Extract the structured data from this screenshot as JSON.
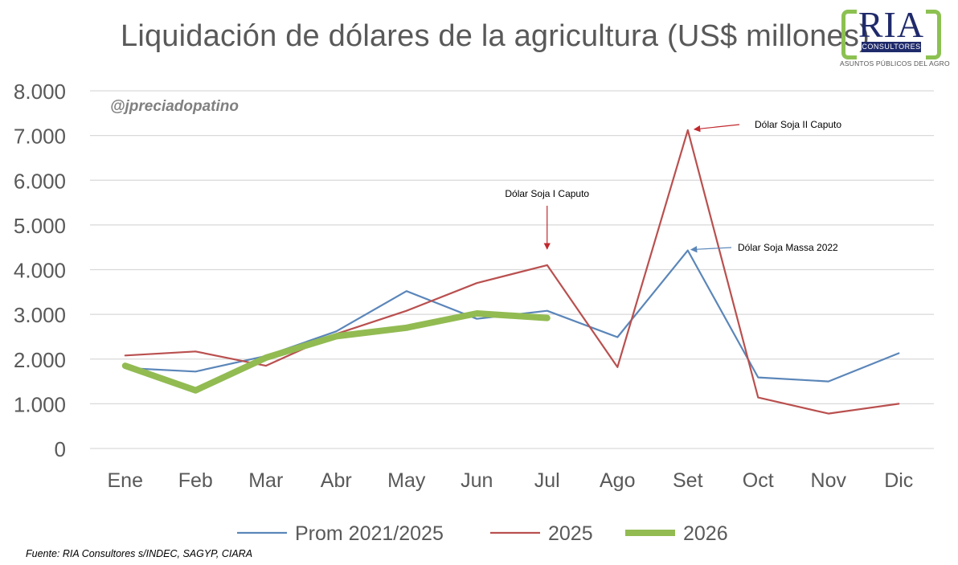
{
  "title": "Liquidación de dólares de la agricultura (US$ millones)",
  "watermark": "@jpreciadopatino",
  "source": "Fuente: RIA Consultores s/INDEC, SAGYP, CIARA",
  "logo": {
    "main": "RIA",
    "badge": "CONSULTORES",
    "tagline": "ASUNTOS PÚBLICOS DEL AGRO"
  },
  "colors": {
    "prom": "#5b86b9",
    "y2025": "#b9504f",
    "y2026": "#92bb52",
    "grid": "#d9d9d9",
    "bracket": "#8cc152"
  },
  "chart_data": {
    "type": "line",
    "categories": [
      "Ene",
      "Feb",
      "Mar",
      "Abr",
      "May",
      "Jun",
      "Jul",
      "Ago",
      "Set",
      "Oct",
      "Nov",
      "Dic"
    ],
    "ylim": [
      0,
      8000
    ],
    "yticks": [
      0,
      1000,
      2000,
      3000,
      4000,
      5000,
      6000,
      7000,
      8000
    ],
    "ytick_labels": [
      "0",
      "1.000",
      "2.000",
      "3.000",
      "4.000",
      "5.000",
      "6.000",
      "7.000",
      "8.000"
    ],
    "grid": true,
    "legend": "bottom",
    "series": [
      {
        "name": "Prom 2021/2025",
        "color": "#5b86b9",
        "width": 2.2,
        "values": [
          1800,
          1720,
          2070,
          2620,
          3520,
          2900,
          3080,
          2490,
          4430,
          1590,
          1500,
          2130
        ]
      },
      {
        "name": "2025",
        "color": "#b9504f",
        "width": 2.2,
        "values": [
          2080,
          2170,
          1850,
          2560,
          3080,
          3700,
          4100,
          1820,
          7120,
          1140,
          780,
          1000
        ]
      },
      {
        "name": "2026",
        "color": "#92bb52",
        "width": 8,
        "values": [
          1850,
          1300,
          2030,
          2510,
          2700,
          3020,
          2920,
          null,
          null,
          null,
          null,
          null
        ]
      }
    ],
    "annotations": [
      {
        "text": "Dólar Soja I Caputo",
        "target_month": 6,
        "target_value": 4100
      },
      {
        "text": "Dólar Soja II Caputo",
        "target_month": 8,
        "target_value": 7120
      },
      {
        "text": "Dólar Soja Massa 2022",
        "target_month": 8,
        "target_value": 4430
      }
    ]
  }
}
